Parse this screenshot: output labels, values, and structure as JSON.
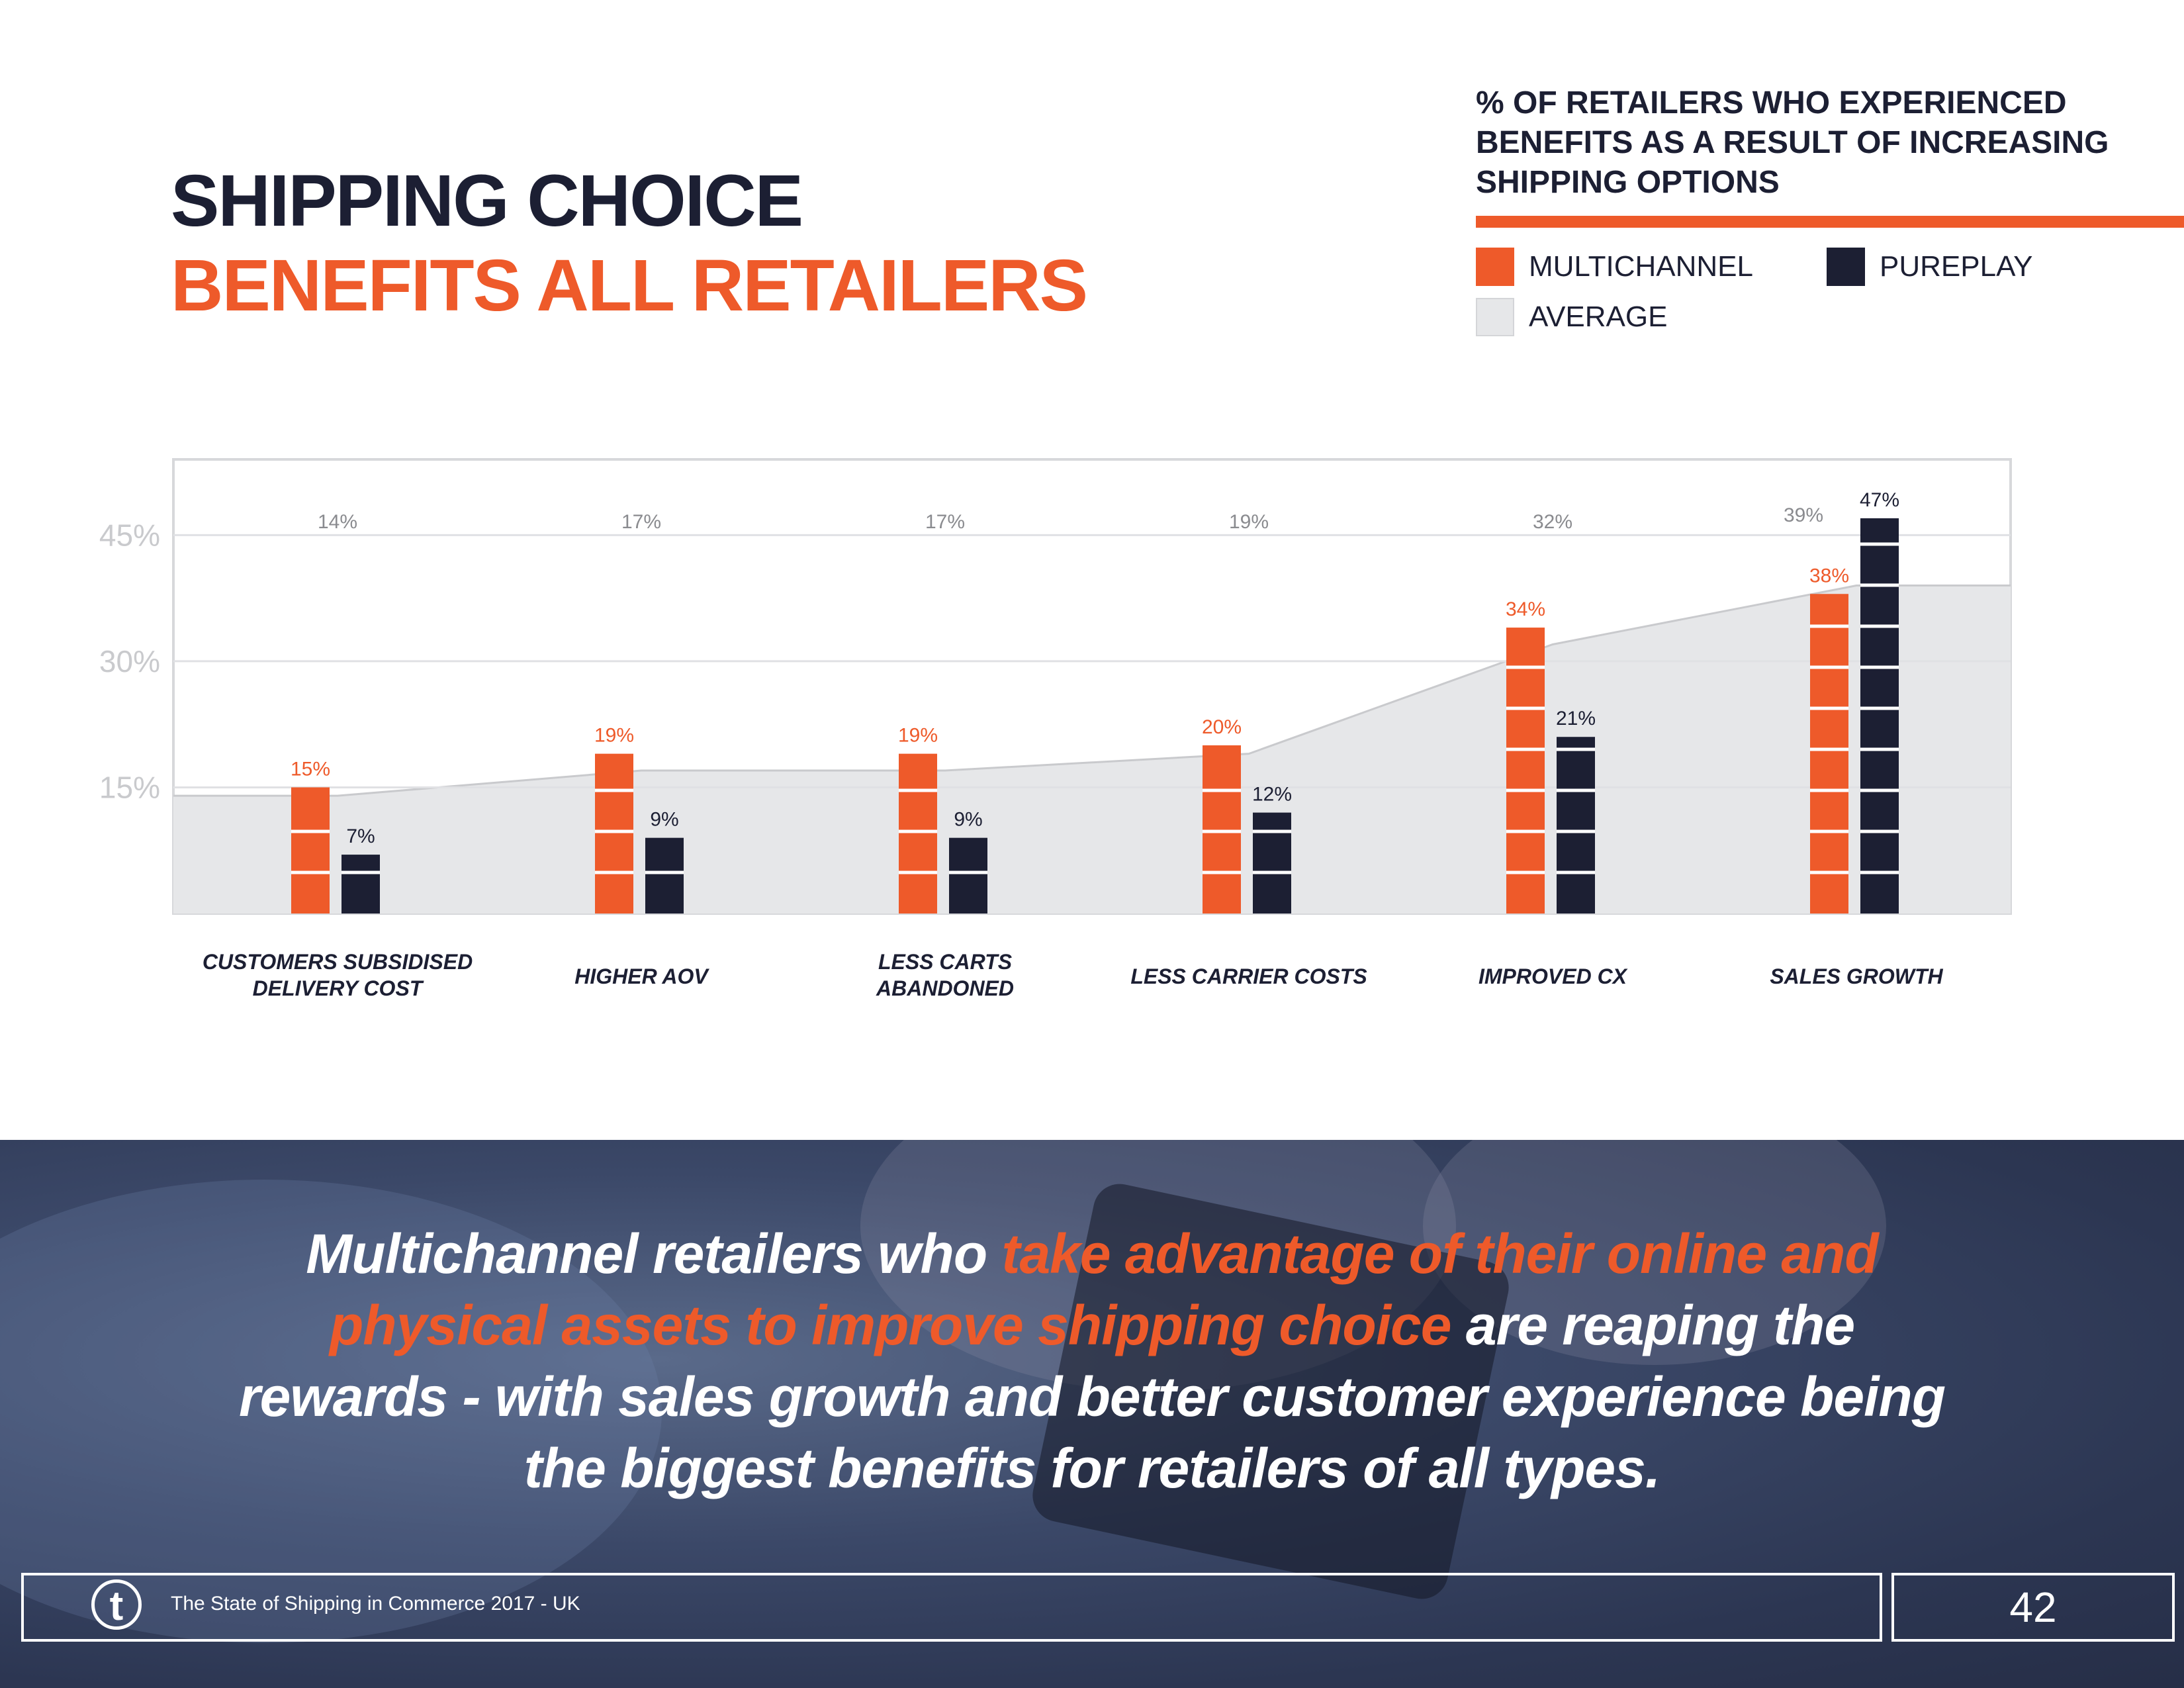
{
  "header": {
    "title_line1": "SHIPPING CHOICE",
    "title_line2": "BENEFITS ALL RETAILERS"
  },
  "chart_title": "% OF RETAILERS WHO EXPERIENCED BENEFITS AS A RESULT OF INCREASING SHIPPING OPTIONS",
  "legend": {
    "multichannel": "MULTICHANNEL",
    "pureplay": "PUREPLAY",
    "average": "AVERAGE"
  },
  "colors": {
    "multichannel": "#ee5a2a",
    "pureplay": "#1c1f33",
    "average": "#e6e7e9",
    "accent": "#ee5a2a"
  },
  "chart_data": {
    "type": "bar",
    "categories": [
      "CUSTOMERS SUBSIDISED DELIVERY COST",
      "HIGHER AOV",
      "LESS CARTS ABANDONED",
      "LESS CARRIER COSTS",
      "IMPROVED CX",
      "SALES GROWTH"
    ],
    "category_lines": [
      [
        "CUSTOMERS SUBSIDISED",
        "DELIVERY COST"
      ],
      [
        "HIGHER AOV"
      ],
      [
        "LESS CARTS",
        "ABANDONED"
      ],
      [
        "LESS CARRIER COSTS"
      ],
      [
        "IMPROVED CX"
      ],
      [
        "SALES GROWTH"
      ]
    ],
    "series": [
      {
        "name": "MULTICHANNEL",
        "values": [
          15,
          19,
          19,
          20,
          34,
          38
        ],
        "labels": [
          "15%",
          "19%",
          "19%",
          "20%",
          "34%",
          "38%"
        ]
      },
      {
        "name": "PUREPLAY",
        "values": [
          7,
          9,
          9,
          12,
          21,
          47
        ],
        "labels": [
          "7%",
          "9%",
          "9%",
          "12%",
          "21%",
          "47%"
        ]
      },
      {
        "name": "AVERAGE",
        "values": [
          14,
          17,
          17,
          19,
          32,
          39
        ],
        "labels": [
          "14%",
          "17%",
          "17%",
          "19%",
          "32%",
          "39%"
        ]
      }
    ],
    "yticks": [
      15,
      30,
      45
    ],
    "ytick_labels": [
      "15%",
      "30%",
      "45%"
    ],
    "ylim": [
      0,
      54
    ],
    "grid": true
  },
  "quote": {
    "part1": "Multichannel retailers who ",
    "highlight": "take advantage of their online and physical assets to improve shipping choice",
    "part2": " are reaping the rewards - with sales growth and better customer experience being the biggest benefits for retailers of all types."
  },
  "footer": {
    "logo_letter": "t",
    "text": "The State of Shipping in Commerce 2017 - UK",
    "page_number": "42"
  }
}
